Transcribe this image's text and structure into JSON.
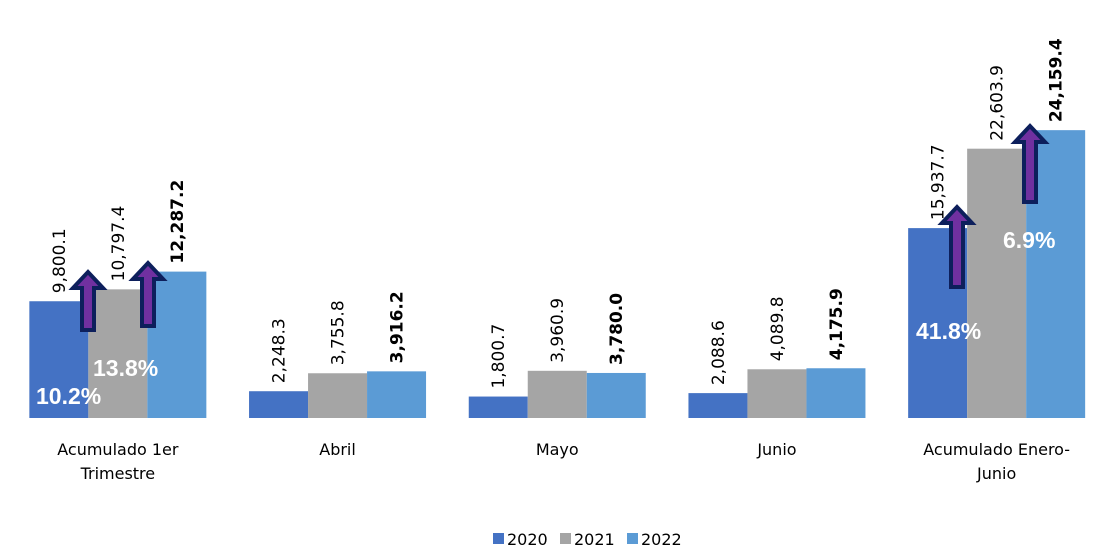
{
  "chart_data": {
    "type": "bar",
    "categories": [
      "Acumulado 1er Trimestre",
      "Abril",
      "Mayo",
      "Junio",
      "Acumulado Enero-Junio"
    ],
    "series": [
      {
        "name": "2020",
        "color": "#4472c4",
        "values": [
          9800.1,
          2248.3,
          1800.7,
          2088.6,
          15937.7
        ],
        "value_labels": [
          "9,800.1",
          "2,248.3",
          "1,800.7",
          "2,088.6",
          "15,937.7"
        ]
      },
      {
        "name": "2021",
        "color": "#a5a5a5",
        "values": [
          10797.4,
          3755.8,
          3960.9,
          4089.8,
          22603.9
        ],
        "value_labels": [
          "10,797.4",
          "3,755.8",
          "3,960.9",
          "4,089.8",
          "22,603.9"
        ]
      },
      {
        "name": "2022",
        "color": "#5b9bd5",
        "values": [
          12287.2,
          3916.2,
          3780.0,
          4175.9,
          24159.4
        ],
        "value_labels": [
          "12,287.2",
          "3,916.2",
          "3,780.0",
          "4,175.9",
          "24,159.4"
        ]
      }
    ],
    "ylim": [
      0,
      35000
    ],
    "legend": "bottom",
    "annotations": [
      {
        "text": "10.2%"
      },
      {
        "text": "13.8%"
      },
      {
        "text": "41.8%"
      },
      {
        "text": "6.9%"
      }
    ]
  }
}
